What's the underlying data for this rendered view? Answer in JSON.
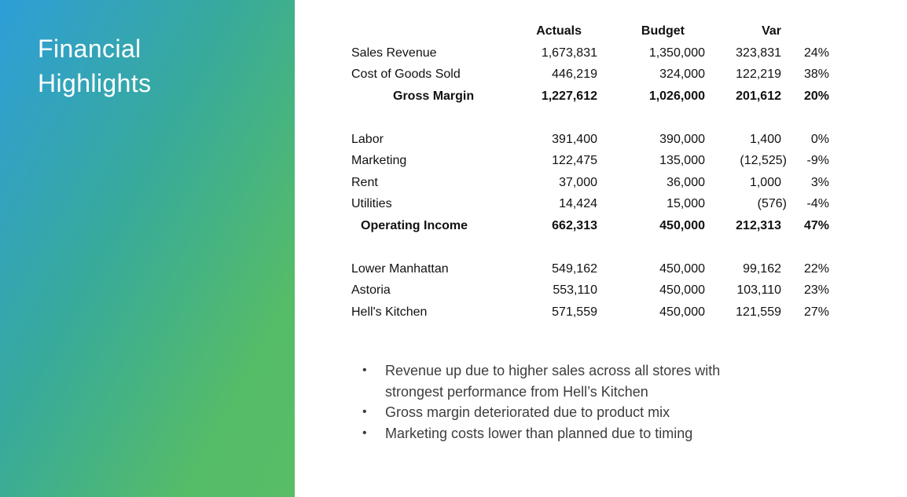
{
  "slide": {
    "title": "Financial Highlights"
  },
  "colors": {
    "panel_gradient_start": "#2E9ED8",
    "panel_gradient_mid": "#38AA9B",
    "panel_gradient_end": "#55BC68",
    "title_text": "#FFFFFF",
    "table_text": "#111111",
    "bullet_text": "#3D3D3D"
  },
  "table": {
    "headers": {
      "actuals": "Actuals",
      "budget": "Budget",
      "var": "Var"
    },
    "rows": [
      {
        "label": "Sales Revenue",
        "actuals": "1,673,831",
        "budget": "1,350,000",
        "var": "323,831",
        "pct": "24%"
      },
      {
        "label": "Cost of Goods Sold",
        "actuals": "446,219",
        "budget": "324,000",
        "var": "122,219",
        "pct": "38%"
      },
      {
        "label": "Gross Margin",
        "actuals": "1,227,612",
        "budget": "1,026,000",
        "var": "201,612",
        "pct": "20%"
      },
      {
        "label": "Labor",
        "actuals": "391,400",
        "budget": "390,000",
        "var": "1,400",
        "pct": "0%"
      },
      {
        "label": "Marketing",
        "actuals": "122,475",
        "budget": "135,000",
        "var": "(12,525)",
        "pct": "-9%"
      },
      {
        "label": "Rent",
        "actuals": "37,000",
        "budget": "36,000",
        "var": "1,000",
        "pct": "3%"
      },
      {
        "label": "Utilities",
        "actuals": "14,424",
        "budget": "15,000",
        "var": "(576)",
        "pct": "-4%"
      },
      {
        "label": "Operating Income",
        "actuals": "662,313",
        "budget": "450,000",
        "var": "212,313",
        "pct": "47%"
      },
      {
        "label": "Lower Manhattan",
        "actuals": "549,162",
        "budget": "450,000",
        "var": "99,162",
        "pct": "22%"
      },
      {
        "label": "Astoria",
        "actuals": "553,110",
        "budget": "450,000",
        "var": "103,110",
        "pct": "23%"
      },
      {
        "label": "Hell's Kitchen",
        "actuals": "571,559",
        "budget": "450,000",
        "var": "121,559",
        "pct": "27%"
      }
    ]
  },
  "bullets": [
    "Revenue up due to higher sales across all stores with strongest performance from Hell’s Kitchen",
    "Gross margin deteriorated due to product mix",
    "Marketing costs lower than planned due to timing"
  ]
}
